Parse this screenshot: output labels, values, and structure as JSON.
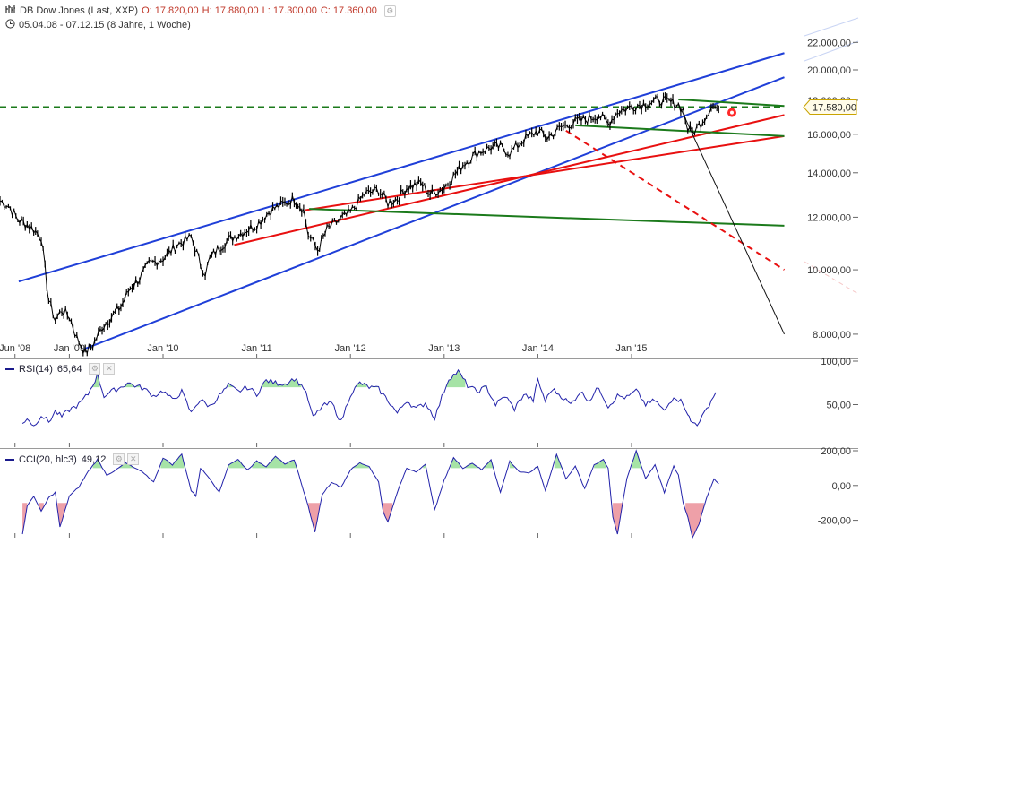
{
  "header": {
    "icon": "chart-bars-icon",
    "title": "DB Dow Jones (Last, XXP)",
    "open": "O: 17.820,00",
    "high": "H: 17.880,00",
    "low": "L: 17.300,00",
    "close": "C: 17.360,00",
    "range_icon": "clock-icon",
    "range": "05.04.08 - 07.12.15 (8 Jahre, 1 Woche)"
  },
  "colors": {
    "price": "#000000",
    "channel_blue": "#1f3fd8",
    "support_red": "#e81010",
    "trend_green": "#1b7a1b",
    "rsi_line": "#2222aa",
    "overbought_fill": "#a6e3a6",
    "oversold_fill": "#eea0a8"
  },
  "indicators": {
    "rsi": {
      "label": "RSI(14)",
      "value": "65,64"
    },
    "cci": {
      "label": "CCI(20, hlc3)",
      "value": "49,12"
    }
  },
  "price_tag": "17.580,00",
  "chart_data": [
    {
      "type": "line",
      "title": "DB Dow Jones (Last, XXP)",
      "scale": "log",
      "y_ticks": [
        "22.000,00",
        "20.000,00",
        "18.000,00",
        "16.000,00",
        "14.000,00",
        "12.000,00",
        "10.000,00",
        "8.000,00"
      ],
      "y_tick_values": [
        22000,
        20000,
        18000,
        16000,
        14000,
        12000,
        10000,
        8000
      ],
      "x_ticks": [
        "Jun '08",
        "Jan '09",
        "Jan '10",
        "Jan '11",
        "Jan '12",
        "Jan '13",
        "Jan '14",
        "Jan '15"
      ],
      "x_tick_times": [
        2008.42,
        2009.0,
        2010.0,
        2011.0,
        2012.0,
        2013.0,
        2014.0,
        2015.0
      ],
      "x_range": [
        2008.26,
        2016.76
      ],
      "y_range": [
        7400,
        23800
      ],
      "series": [
        {
          "x": [
            2008.26,
            2008.35,
            2008.45,
            2008.55,
            2008.62,
            2008.7,
            2008.78,
            2008.85,
            2008.92,
            2009.0,
            2009.08,
            2009.17,
            2009.25,
            2009.35,
            2009.45,
            2009.55,
            2009.65,
            2009.75,
            2009.85,
            2010.0,
            2010.15,
            2010.3,
            2010.4,
            2010.45,
            2010.5,
            2010.6,
            2010.7,
            2010.85,
            2011.0,
            2011.15,
            2011.3,
            2011.4,
            2011.5,
            2011.55,
            2011.6,
            2011.65,
            2011.75,
            2011.85,
            2012.0,
            2012.15,
            2012.3,
            2012.4,
            2012.5,
            2012.6,
            2012.75,
            2012.85,
            2013.0,
            2013.2,
            2013.35,
            2013.5,
            2013.6,
            2013.7,
            2013.85,
            2014.0,
            2014.1,
            2014.25,
            2014.4,
            2014.55,
            2014.65,
            2014.75,
            2014.85,
            2015.0,
            2015.15,
            2015.3,
            2015.4,
            2015.5,
            2015.55,
            2015.6,
            2015.65,
            2015.72,
            2015.8,
            2015.85,
            2015.93
          ],
          "y": [
            12700,
            12500,
            11900,
            11700,
            11500,
            11200,
            9000,
            8400,
            8700,
            8500,
            7900,
            7500,
            7700,
            8200,
            8500,
            8800,
            9400,
            9700,
            10200,
            10400,
            10900,
            11200,
            10200,
            9900,
            10400,
            10800,
            11100,
            11400,
            11700,
            12300,
            12600,
            12800,
            12300,
            11300,
            11000,
            10700,
            11500,
            11800,
            12200,
            13000,
            13200,
            12600,
            12800,
            13300,
            13500,
            13000,
            13300,
            14400,
            15000,
            15300,
            15300,
            15000,
            15700,
            16200,
            15800,
            16400,
            16700,
            16900,
            17100,
            16600,
            17300,
            17600,
            17800,
            18000,
            17900,
            17700,
            17400,
            16300,
            16100,
            16500,
            17100,
            17700,
            17450
          ]
        }
      ],
      "annotations": [
        {
          "name": "blue-channel-upper",
          "x": [
            2008.46,
            2016.63
          ],
          "y": [
            9600,
            21200
          ]
        },
        {
          "name": "blue-channel-lower",
          "x": [
            2009.16,
            2016.63
          ],
          "y": [
            7600,
            19500
          ]
        },
        {
          "name": "red-support-upper",
          "x": [
            2010.76,
            2016.63
          ],
          "y": [
            10900,
            17100
          ]
        },
        {
          "name": "red-support-lower",
          "x": [
            2011.52,
            2016.63
          ],
          "y": [
            12300,
            15900
          ]
        },
        {
          "name": "green-trend-long",
          "x": [
            2011.56,
            2016.63
          ],
          "y": [
            12350,
            11650
          ]
        },
        {
          "name": "green-trend-short",
          "x": [
            2014.4,
            2016.63
          ],
          "y": [
            16500,
            15900
          ]
        },
        {
          "name": "green-top",
          "x": [
            2015.5,
            2016.63
          ],
          "y": [
            18050,
            17650
          ]
        },
        {
          "name": "resistance-17580",
          "x": [
            2008.26,
            2016.63
          ],
          "y": [
            17580,
            17580
          ]
        },
        {
          "name": "red-dashed-projection",
          "x": [
            2014.3,
            2016.63
          ],
          "y": [
            16200,
            10000
          ]
        },
        {
          "name": "black-decline-line",
          "x": [
            2015.5,
            2016.63
          ],
          "y": [
            17800,
            8000
          ]
        }
      ]
    },
    {
      "type": "line",
      "title": "RSI(14)",
      "y_ticks": [
        "100,00",
        "50,00"
      ],
      "y_tick_values": [
        100,
        50
      ],
      "y_range": [
        0,
        100
      ],
      "overbought": 70,
      "series": [
        {
          "x": [
            2008.5,
            2008.55,
            2008.62,
            2008.7,
            2008.78,
            2008.85,
            2008.92,
            2009.0,
            2009.1,
            2009.2,
            2009.3,
            2009.37,
            2009.45,
            2009.55,
            2009.62,
            2009.7,
            2009.8,
            2009.9,
            2010.0,
            2010.1,
            2010.2,
            2010.3,
            2010.35,
            2010.4,
            2010.5,
            2010.6,
            2010.7,
            2010.8,
            2010.9,
            2011.0,
            2011.1,
            2011.2,
            2011.3,
            2011.4,
            2011.5,
            2011.55,
            2011.6,
            2011.7,
            2011.8,
            2011.9,
            2012.0,
            2012.1,
            2012.2,
            2012.3,
            2012.4,
            2012.5,
            2012.6,
            2012.7,
            2012.8,
            2012.9,
            2013.0,
            2013.05,
            2013.15,
            2013.25,
            2013.35,
            2013.45,
            2013.55,
            2013.65,
            2013.75,
            2013.85,
            2013.95,
            2014.0,
            2014.08,
            2014.15,
            2014.25,
            2014.35,
            2014.45,
            2014.55,
            2014.65,
            2014.75,
            2014.85,
            2014.95,
            2015.05,
            2015.15,
            2015.25,
            2015.35,
            2015.45,
            2015.55,
            2015.6,
            2015.63,
            2015.7,
            2015.78,
            2015.85,
            2015.9
          ],
          "y": [
            28,
            35,
            25,
            38,
            30,
            42,
            36,
            44,
            50,
            62,
            84,
            60,
            65,
            70,
            75,
            72,
            68,
            60,
            66,
            55,
            65,
            40,
            50,
            55,
            48,
            60,
            72,
            65,
            70,
            62,
            78,
            75,
            74,
            80,
            70,
            55,
            35,
            48,
            52,
            30,
            62,
            75,
            70,
            68,
            55,
            40,
            55,
            45,
            52,
            35,
            66,
            80,
            88,
            72,
            65,
            70,
            50,
            60,
            45,
            62,
            55,
            78,
            54,
            68,
            60,
            50,
            65,
            55,
            70,
            48,
            60,
            58,
            66,
            50,
            55,
            42,
            60,
            52,
            40,
            30,
            28,
            40,
            55,
            64
          ]
        }
      ]
    },
    {
      "type": "line",
      "title": "CCI(20, hlc3)",
      "y_ticks": [
        "200,00",
        "0,00",
        "-200,00"
      ],
      "y_tick_values": [
        200,
        0,
        -200
      ],
      "y_range": [
        -300,
        200
      ],
      "overbought": 100,
      "oversold": -100,
      "series": [
        {
          "x": [
            2008.5,
            2008.55,
            2008.62,
            2008.7,
            2008.78,
            2008.85,
            2008.9,
            2009.0,
            2009.1,
            2009.2,
            2009.3,
            2009.4,
            2009.5,
            2009.6,
            2009.7,
            2009.8,
            2009.9,
            2010.0,
            2010.1,
            2010.2,
            2010.3,
            2010.35,
            2010.4,
            2010.5,
            2010.6,
            2010.7,
            2010.8,
            2010.9,
            2011.0,
            2011.1,
            2011.2,
            2011.3,
            2011.4,
            2011.5,
            2011.55,
            2011.62,
            2011.7,
            2011.8,
            2011.9,
            2012.0,
            2012.1,
            2012.2,
            2012.3,
            2012.35,
            2012.4,
            2012.5,
            2012.6,
            2012.7,
            2012.8,
            2012.9,
            2013.0,
            2013.1,
            2013.2,
            2013.3,
            2013.4,
            2013.5,
            2013.6,
            2013.7,
            2013.8,
            2013.9,
            2014.0,
            2014.08,
            2014.2,
            2014.3,
            2014.4,
            2014.5,
            2014.6,
            2014.7,
            2014.75,
            2014.8,
            2014.85,
            2014.95,
            2015.05,
            2015.15,
            2015.25,
            2015.35,
            2015.45,
            2015.5,
            2015.55,
            2015.6,
            2015.65,
            2015.72,
            2015.8,
            2015.88,
            2015.93
          ],
          "y": [
            -280,
            -120,
            -60,
            -150,
            -70,
            -40,
            -240,
            -60,
            -10,
            80,
            150,
            60,
            90,
            130,
            100,
            70,
            20,
            160,
            120,
            180,
            -30,
            -60,
            100,
            40,
            -40,
            120,
            150,
            90,
            140,
            110,
            170,
            120,
            150,
            -30,
            -120,
            -270,
            -50,
            20,
            -10,
            90,
            130,
            110,
            20,
            -150,
            -210,
            -40,
            100,
            80,
            120,
            -140,
            30,
            160,
            100,
            130,
            90,
            150,
            -40,
            140,
            80,
            70,
            110,
            -30,
            180,
            40,
            110,
            -20,
            120,
            150,
            100,
            -180,
            -280,
            40,
            200,
            40,
            120,
            -40,
            110,
            60,
            -100,
            -180,
            -300,
            -220,
            -70,
            40,
            10
          ]
        }
      ]
    }
  ]
}
